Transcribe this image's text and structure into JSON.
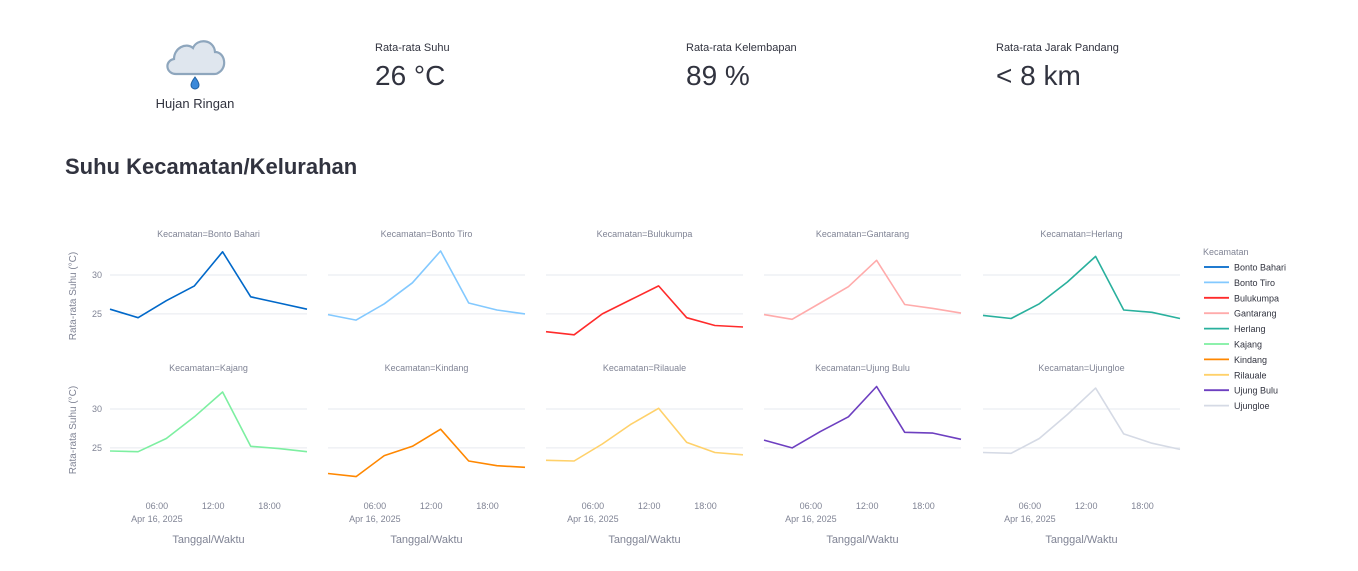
{
  "weather": {
    "condition": "Hujan Ringan",
    "icon": "rain-cloud-icon"
  },
  "metrics": [
    {
      "label": "Rata-rata Suhu",
      "value": "26 °C"
    },
    {
      "label": "Rata-rata Kelembapan",
      "value": "89 %"
    },
    {
      "label": "Rata-rata Jarak Pandang",
      "value": "< 8 km"
    }
  ],
  "section_title": "Suhu Kecamatan/Kelurahan",
  "chart_data": {
    "type": "line",
    "facet_prefix": "Kecamatan=",
    "xlabel": "Tanggal/Waktu",
    "ylabel": "Rata-rata Suhu (°C)",
    "legend_title": "Kecamatan",
    "legend_position": "right",
    "grid": true,
    "x": [
      "2025-04-16 01:00",
      "2025-04-16 04:00",
      "2025-04-16 07:00",
      "2025-04-16 10:00",
      "2025-04-16 13:00",
      "2025-04-16 16:00",
      "2025-04-16 19:00",
      "2025-04-16 22:00"
    ],
    "xlim": [
      "2025-04-16 01:00",
      "2025-04-16 22:00"
    ],
    "x_ticks": [
      "06:00",
      "12:00",
      "18:00"
    ],
    "x_tick_date": "Apr 16, 2025",
    "ylim": [
      20.6,
      34.0
    ],
    "y_ticks": [
      25,
      30
    ],
    "series": [
      {
        "name": "Bonto Bahari",
        "color": "#0068c9",
        "values": [
          25.6,
          24.5,
          26.7,
          28.6,
          33.0,
          27.2,
          26.4,
          25.6
        ]
      },
      {
        "name": "Bonto Tiro",
        "color": "#83c9ff",
        "values": [
          24.9,
          24.2,
          26.3,
          29.0,
          33.1,
          26.4,
          25.5,
          25.0
        ]
      },
      {
        "name": "Bulukumpa",
        "color": "#ff2b2b",
        "values": [
          22.7,
          22.3,
          25.0,
          26.8,
          28.6,
          24.5,
          23.5,
          23.3
        ]
      },
      {
        "name": "Gantarang",
        "color": "#ffabab",
        "values": [
          24.9,
          24.3,
          26.4,
          28.5,
          31.9,
          26.2,
          25.7,
          25.1
        ]
      },
      {
        "name": "Herlang",
        "color": "#29b09d",
        "values": [
          24.8,
          24.4,
          26.3,
          29.1,
          32.4,
          25.5,
          25.2,
          24.4
        ]
      },
      {
        "name": "Kajang",
        "color": "#7defa1",
        "values": [
          24.6,
          24.5,
          26.2,
          29.0,
          32.2,
          25.2,
          24.9,
          24.5
        ]
      },
      {
        "name": "Kindang",
        "color": "#ff8700",
        "values": [
          21.7,
          21.3,
          24.0,
          25.2,
          27.4,
          23.3,
          22.7,
          22.5
        ]
      },
      {
        "name": "Rilauale",
        "color": "#ffd16a",
        "values": [
          23.4,
          23.3,
          25.5,
          28.0,
          30.1,
          25.7,
          24.4,
          24.1
        ]
      },
      {
        "name": "Ujung Bulu",
        "color": "#6d3fc0",
        "values": [
          26.0,
          25.0,
          27.1,
          29.0,
          32.9,
          27.0,
          26.9,
          26.1
        ]
      },
      {
        "name": "Ujungloe",
        "color": "#d5dae5",
        "values": [
          24.4,
          24.3,
          26.2,
          29.3,
          32.7,
          26.8,
          25.6,
          24.8
        ]
      }
    ]
  }
}
